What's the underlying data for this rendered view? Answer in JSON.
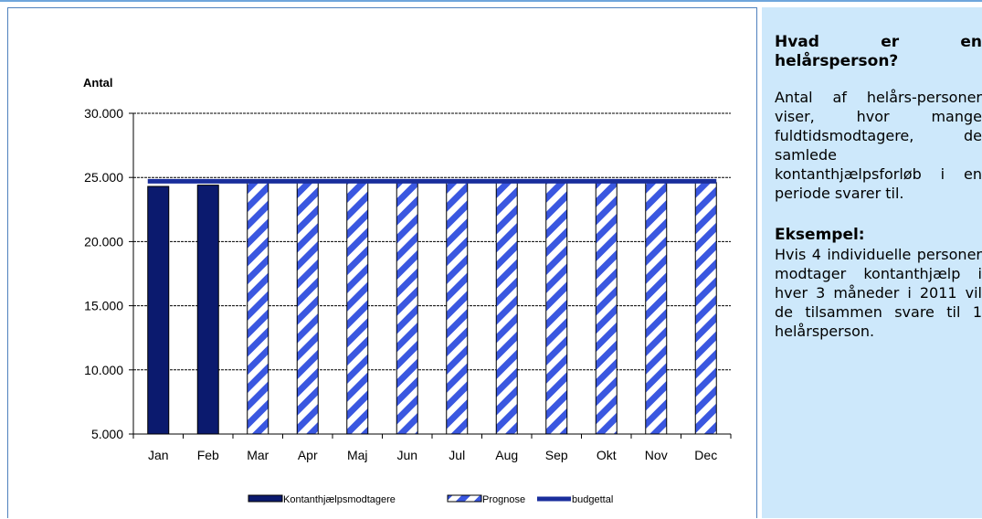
{
  "chart_data": {
    "type": "bar",
    "ylabel": "Antal",
    "ylim": [
      5000,
      30000
    ],
    "yticks": [
      "5.000",
      "10.000",
      "15.000",
      "20.000",
      "25.000",
      "30.000"
    ],
    "ytick_values": [
      5000,
      10000,
      15000,
      20000,
      25000,
      30000
    ],
    "categories": [
      "Jan",
      "Feb",
      "Mar",
      "Apr",
      "Maj",
      "Jun",
      "Jul",
      "Aug",
      "Sep",
      "Okt",
      "Nov",
      "Dec"
    ],
    "grid": true,
    "legend_position": "bottom",
    "series": [
      {
        "name": "Kontanthjælpsmodtagere",
        "kind": "bar",
        "color": "#0b1a6e",
        "values": [
          24300,
          24400,
          null,
          null,
          null,
          null,
          null,
          null,
          null,
          null,
          null,
          null
        ]
      },
      {
        "name": "Prognose",
        "kind": "bar",
        "pattern": "diagonal-stripes",
        "color": "#3a57e0",
        "values": [
          null,
          null,
          24700,
          24800,
          24800,
          24800,
          24700,
          24700,
          24700,
          24700,
          24700,
          24600
        ]
      },
      {
        "name": "budgettal",
        "kind": "line",
        "color": "#1a2e9c",
        "values": [
          24700,
          24700,
          24700,
          24700,
          24700,
          24700,
          24700,
          24700,
          24700,
          24700,
          24700,
          24700
        ]
      }
    ]
  },
  "info": {
    "heading1": "Hvad er en helårsperson?",
    "paragraph1": "Antal af helårs-personer viser, hvor mange fuldtidsmodtagere, de samlede kontanthjælpsforløb i en periode svarer til.",
    "heading2": "Eksempel:",
    "paragraph2": "Hvis 4 individuelle personer modtager kontanthjælp i hver 3 måneder i 2011 vil de tilsammen svare til 1 helårsperson."
  }
}
